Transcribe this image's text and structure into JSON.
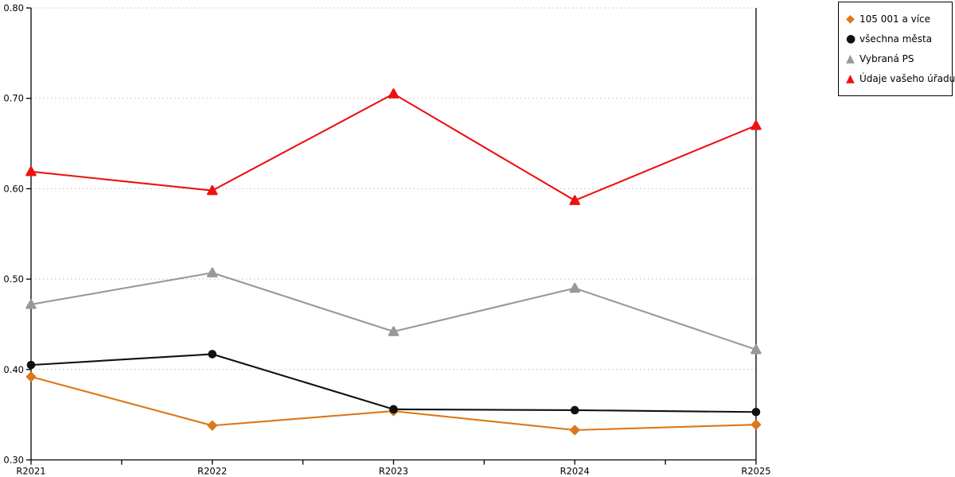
{
  "chart_data": {
    "type": "line",
    "categories": [
      "R2021",
      "R2022",
      "R2023",
      "R2024",
      "R2025"
    ],
    "series": [
      {
        "name": "105 001 a více",
        "color": "#DD771A",
        "marker": "diamond",
        "values": [
          0.392,
          0.338,
          0.354,
          0.333,
          0.339
        ]
      },
      {
        "name": "všechna města",
        "color": "#111111",
        "marker": "circle",
        "values": [
          0.405,
          0.417,
          0.356,
          0.355,
          0.353
        ]
      },
      {
        "name": "Vybraná PS",
        "color": "#999999",
        "marker": "triangle",
        "values": [
          0.472,
          0.507,
          0.442,
          0.49,
          0.422
        ]
      },
      {
        "name": "Údaje vašeho úřadu",
        "color": "#EE1111",
        "marker": "triangle",
        "values": [
          0.619,
          0.598,
          0.705,
          0.587,
          0.67
        ]
      }
    ],
    "title": "",
    "xlabel": "",
    "ylabel": "",
    "ylim": [
      0.3,
      0.8
    ],
    "yticks": [
      0.3,
      0.4,
      0.5,
      0.6,
      0.7,
      0.8
    ],
    "ytick_decimals": 2,
    "grid": true,
    "gridline_color": "#bfbfbf",
    "axis_color": "#000000",
    "legend_position": "top-right"
  }
}
